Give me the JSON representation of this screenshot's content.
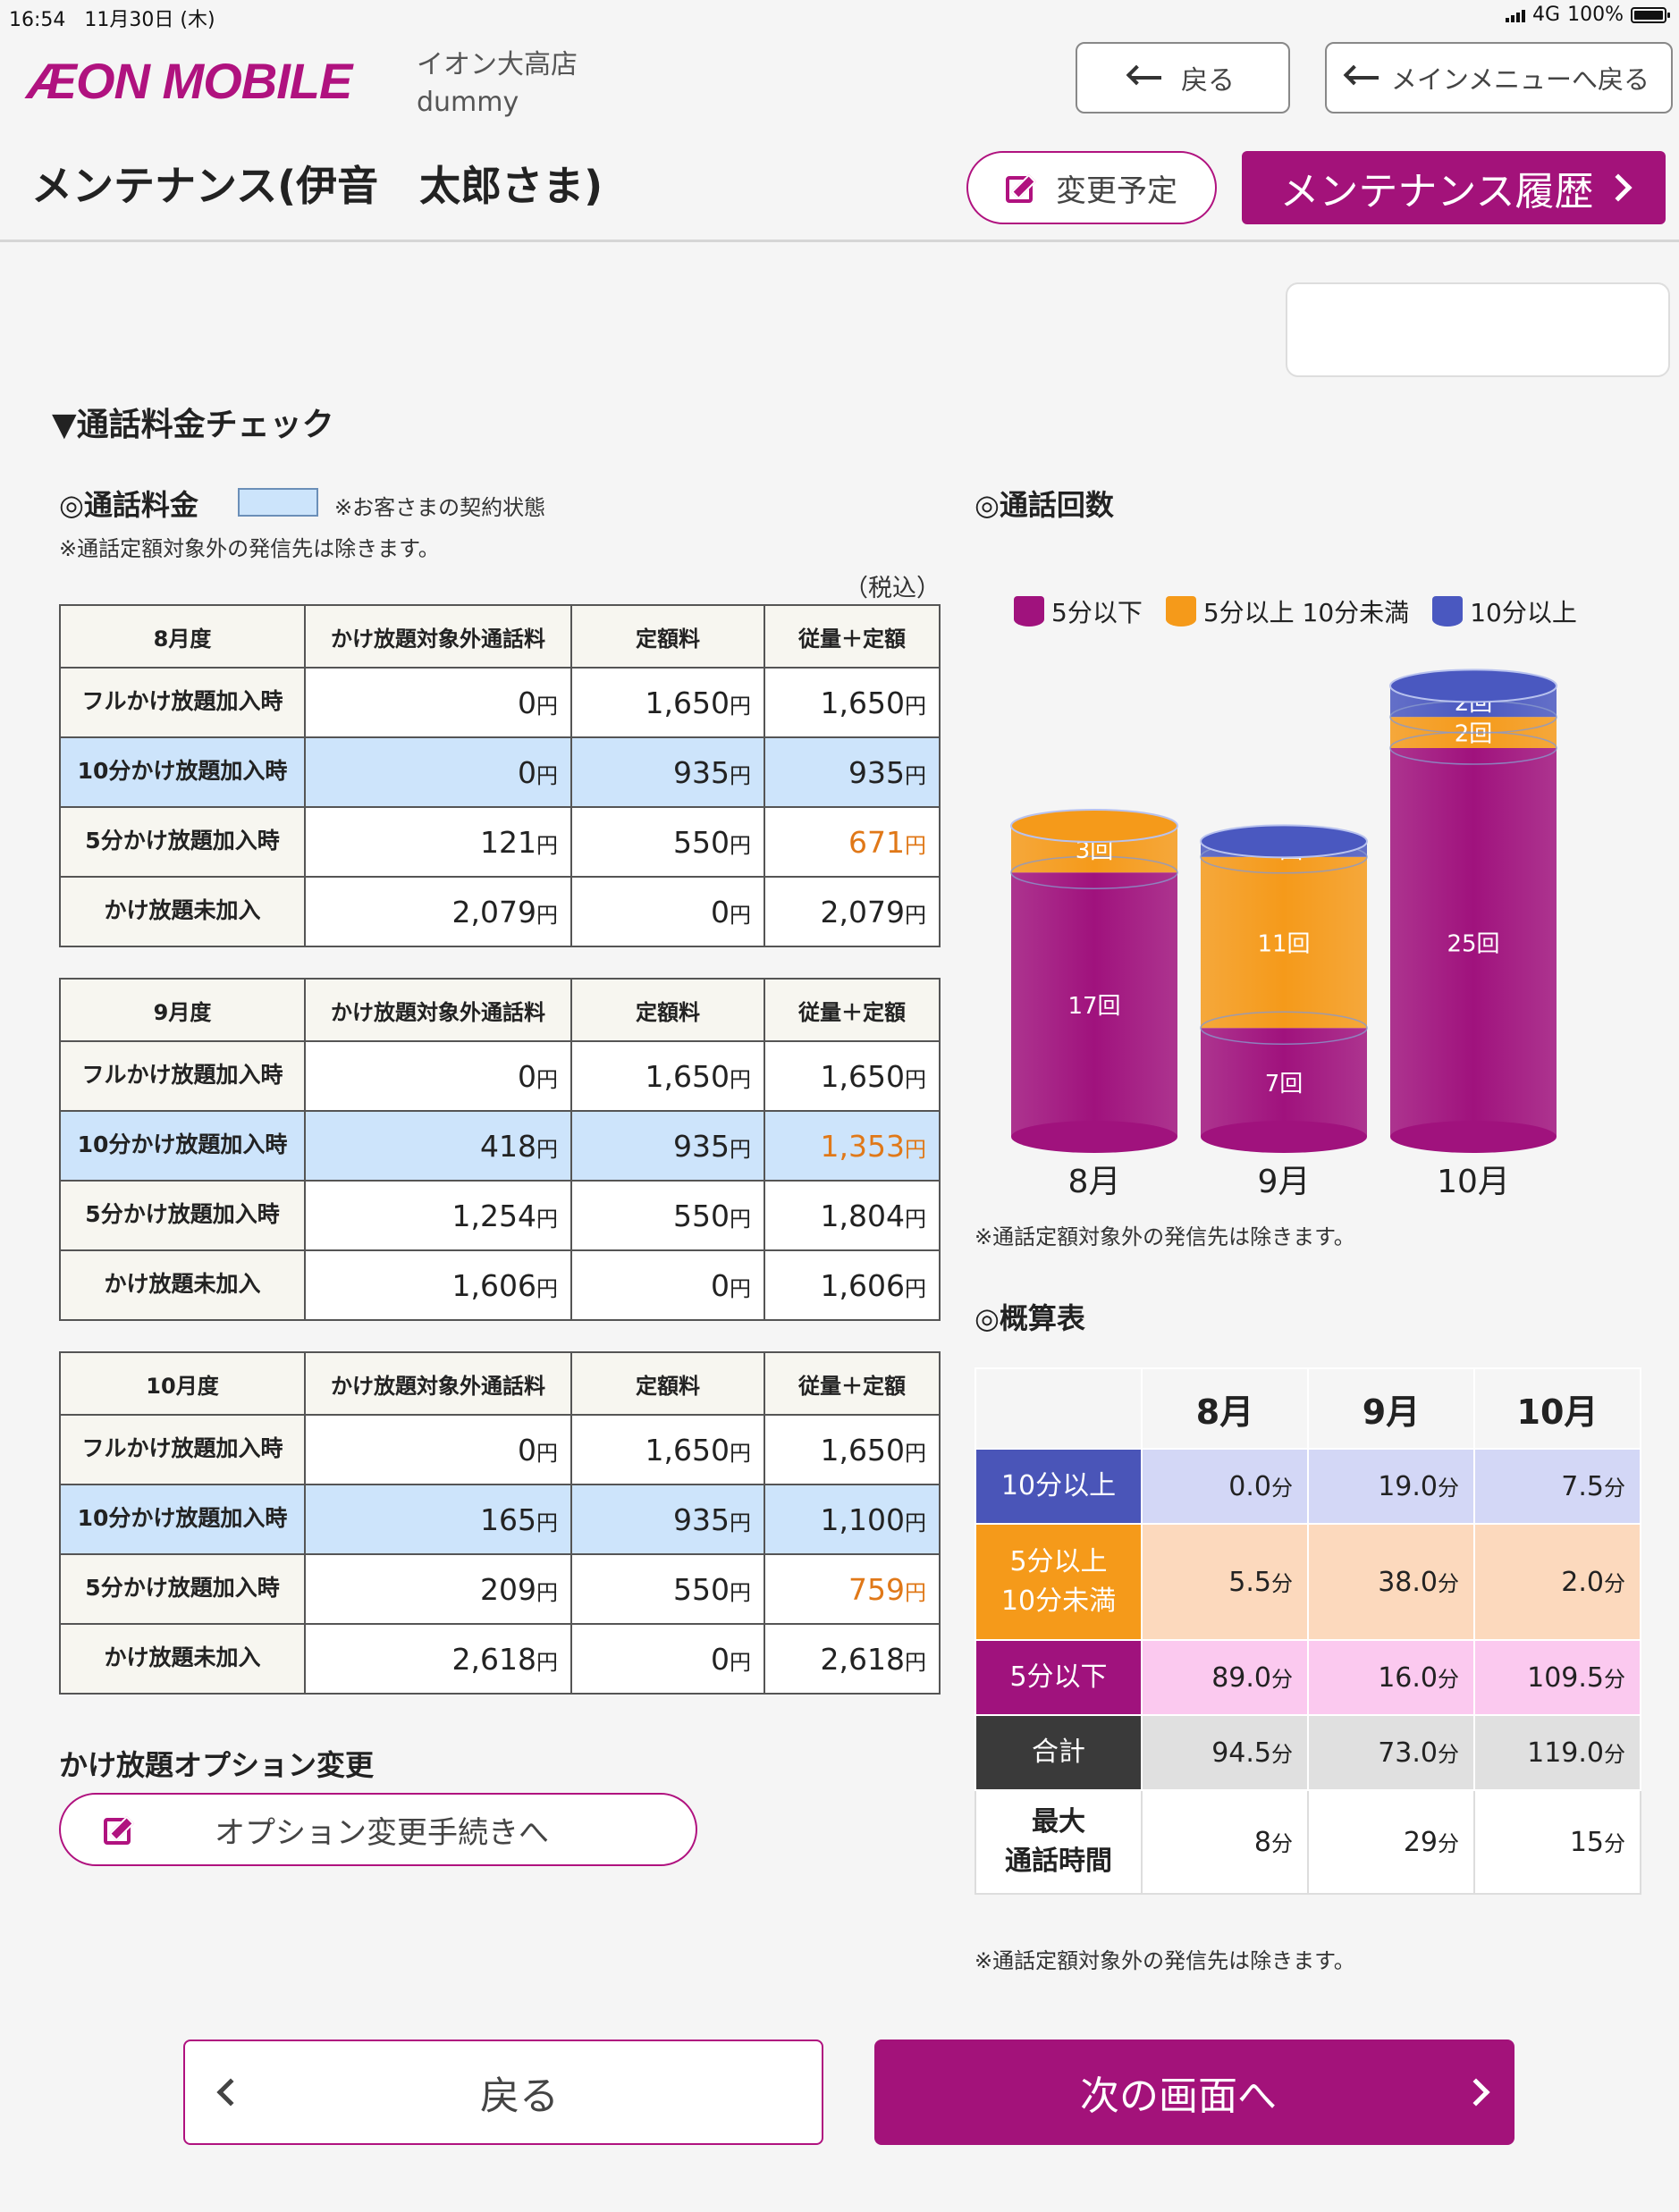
{
  "status": {
    "time": "16:54",
    "date": "11月30日 (木)",
    "network": "4G",
    "battery": "100%"
  },
  "header": {
    "logo": "ÆON MOBILE",
    "store_name": "イオン大高店",
    "store_user": "dummy",
    "back_label": "戻る",
    "main_menu_label": "メインメニューへ戻る",
    "page_title": "メンテナンス(伊音　太郎さま)",
    "plan_label": "変更予定",
    "history_label": "メンテナンス履歴"
  },
  "section": {
    "title": "▼通話料金チェック"
  },
  "fees": {
    "title": "◎通話料金",
    "legend_note": "※お客さまの契約状態",
    "exclusion_note": "※通話定額対象外の発信先は除きます。",
    "tax_note": "（税込）",
    "col_outside": "かけ放題対象外通話料",
    "col_fixed": "定額料",
    "col_total": "従量＋定額",
    "unit": "円",
    "tables": [
      {
        "month": "8月度",
        "rows": [
          {
            "label": "フルかけ放題加入時",
            "outside": "0",
            "fixed": "1,650",
            "total": "1,650"
          },
          {
            "label": "10分かけ放題加入時",
            "outside": "0",
            "fixed": "935",
            "total": "935"
          },
          {
            "label": "5分かけ放題加入時",
            "outside": "121",
            "fixed": "550",
            "total": "671"
          },
          {
            "label": "かけ放題未加入",
            "outside": "2,079",
            "fixed": "0",
            "total": "2,079"
          }
        ]
      },
      {
        "month": "9月度",
        "rows": [
          {
            "label": "フルかけ放題加入時",
            "outside": "0",
            "fixed": "1,650",
            "total": "1,650"
          },
          {
            "label": "10分かけ放題加入時",
            "outside": "418",
            "fixed": "935",
            "total": "1,353"
          },
          {
            "label": "5分かけ放題加入時",
            "outside": "1,254",
            "fixed": "550",
            "total": "1,804"
          },
          {
            "label": "かけ放題未加入",
            "outside": "1,606",
            "fixed": "0",
            "total": "1,606"
          }
        ]
      },
      {
        "month": "10月度",
        "rows": [
          {
            "label": "フルかけ放題加入時",
            "outside": "0",
            "fixed": "1,650",
            "total": "1,650"
          },
          {
            "label": "10分かけ放題加入時",
            "outside": "165",
            "fixed": "935",
            "total": "1,100"
          },
          {
            "label": "5分かけ放題加入時",
            "outside": "209",
            "fixed": "550",
            "total": "759"
          },
          {
            "label": "かけ放題未加入",
            "outside": "2,618",
            "fixed": "0",
            "total": "2,618"
          }
        ]
      }
    ]
  },
  "option": {
    "title": "かけ放題オプション変更",
    "button_label": "オプション変更手続きへ"
  },
  "calls": {
    "title": "◎通話回数",
    "note": "※通話定額対象外の発信先は除きます。",
    "legend": [
      "5分以下",
      "5分以上 10分未満",
      "10分以上"
    ]
  },
  "chart_data": {
    "type": "bar",
    "stacked": true,
    "categories": [
      "8月",
      "9月",
      "10月"
    ],
    "series": [
      {
        "name": "5分以下",
        "values": [
          17,
          7,
          25
        ],
        "color": "#a0127d"
      },
      {
        "name": "5分以上 10分未満",
        "values": [
          3,
          11,
          2
        ],
        "color": "#f59a1a"
      },
      {
        "name": "10分以上",
        "values": [
          0,
          1,
          2
        ],
        "color": "#4a58c0"
      }
    ],
    "value_suffix": "回"
  },
  "summary": {
    "title": "◎概算表",
    "months": [
      "8月",
      "9月",
      "10月"
    ],
    "unit": "分",
    "rows": [
      {
        "label": "10分以上",
        "values": [
          "0.0",
          "19.0",
          "7.5"
        ],
        "label_bg": "#4a55b8",
        "bg": "#d3d7f6"
      },
      {
        "label": "5分以上\n10分未満",
        "values": [
          "5.5",
          "38.0",
          "2.0"
        ],
        "label_bg": "#f59a1a",
        "bg": "#fcd9bd"
      },
      {
        "label": "5分以下",
        "values": [
          "89.0",
          "16.0",
          "109.5"
        ],
        "label_bg": "#a0127d",
        "bg": "#fbc9ef"
      },
      {
        "label": "合計",
        "values": [
          "94.5",
          "73.0",
          "119.0"
        ],
        "label_bg": "#3a3a3a",
        "bg": "#e0e0e0"
      },
      {
        "label": "最大\n通話時間",
        "values": [
          "8",
          "29",
          "15"
        ],
        "label_bg": "#ffffff",
        "bg": "#ffffff"
      }
    ],
    "note": "※通話定額対象外の発信先は除きます。"
  },
  "footer": {
    "back_label": "戻る",
    "next_label": "次の画面へ"
  }
}
